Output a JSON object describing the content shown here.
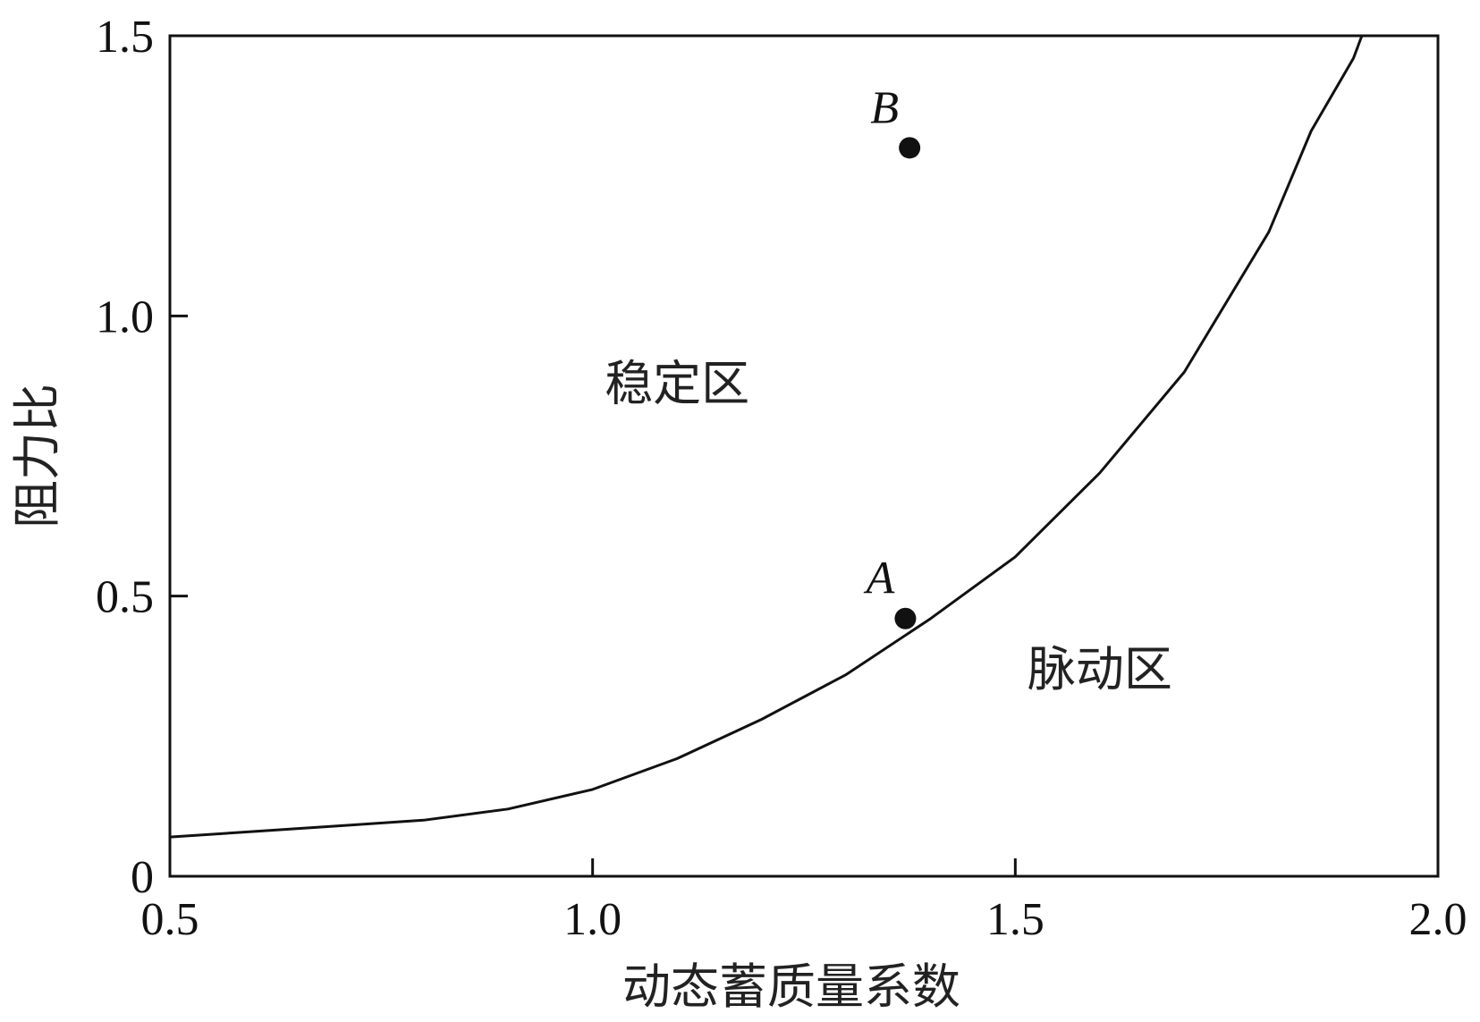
{
  "chart_data": {
    "type": "line",
    "xlabel": "动态蓄质量系数",
    "ylabel": "阻力比",
    "xlim": [
      0.5,
      2.0
    ],
    "ylim": [
      0,
      1.5
    ],
    "x_ticks": [
      "0.5",
      "1.0",
      "1.5",
      "2.0"
    ],
    "y_ticks": [
      "0",
      "0.5",
      "1.0",
      "1.5"
    ],
    "grid": false,
    "series": [
      {
        "x": [
          0.5,
          0.6,
          0.7,
          0.8,
          0.9,
          1.0,
          1.1,
          1.2,
          1.3,
          1.4,
          1.5,
          1.6,
          1.7,
          1.8,
          1.85,
          1.9,
          1.91
        ],
        "y": [
          0.07,
          0.08,
          0.09,
          0.1,
          0.12,
          0.155,
          0.21,
          0.28,
          0.36,
          0.46,
          0.57,
          0.72,
          0.9,
          1.15,
          1.33,
          1.46,
          1.5
        ]
      }
    ],
    "points": [
      {
        "label": "A",
        "x": 1.37,
        "y": 0.46
      },
      {
        "label": "B",
        "x": 1.375,
        "y": 1.3
      }
    ],
    "regions": [
      {
        "label": "稳定区",
        "x": 1.1,
        "y": 0.85
      },
      {
        "label": "脉动区",
        "x": 1.6,
        "y": 0.34
      }
    ],
    "colors": {
      "line": "#111111",
      "marker": "#111111",
      "axis": "#111111"
    }
  }
}
